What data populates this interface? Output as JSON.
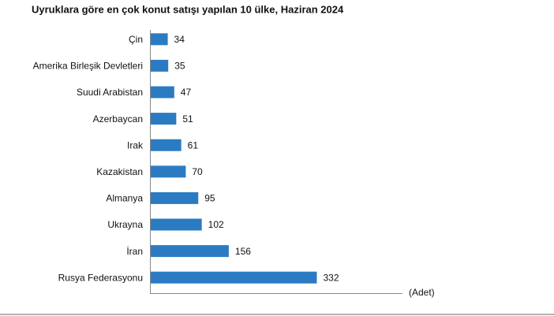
{
  "chart_data": {
    "type": "barh",
    "title": "Uyruklara göre en çok konut satışı yapılan 10 ülke, Haziran 2024",
    "x_label": "(Adet)",
    "categories": [
      "Çin",
      "Amerika Birleşik Devletleri",
      "Suudi Arabistan",
      "Azerbaycan",
      "Irak",
      "Kazakistan",
      "Almanya",
      "Ukrayna",
      "İran",
      "Rusya Federasyonu"
    ],
    "values": [
      34,
      35,
      47,
      51,
      61,
      70,
      95,
      102,
      156,
      332
    ],
    "color": "#2b7bc2",
    "xlim": [
      0,
      500
    ]
  }
}
